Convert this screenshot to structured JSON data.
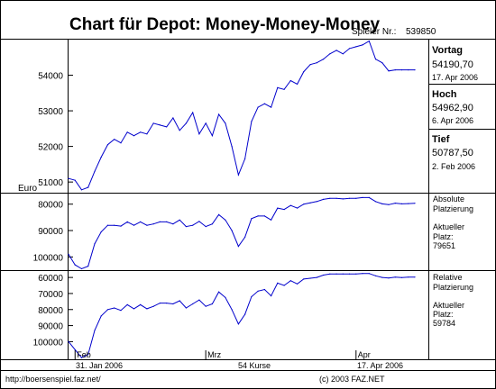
{
  "title": "Chart für Depot:  Money-Money-Money",
  "player_label": "Spieler Nr.:",
  "player_number": "539850",
  "side_stats": [
    {
      "label": "Vortag",
      "value": "54190,70",
      "date": "17. Apr 2006"
    },
    {
      "label": "Hoch",
      "value": "54962,90",
      "date": "6. Apr 2006"
    },
    {
      "label": "Tief",
      "value": "50787,50",
      "date": "2. Feb 2006"
    }
  ],
  "absolute": {
    "label_line1": "Absolute",
    "label_line2": "Platzierung",
    "current_line1": "Aktueller",
    "current_line2": "Platz:",
    "current_value": "79651"
  },
  "relative": {
    "label_line1": "Relative",
    "label_line2": "Platzierung",
    "current_line1": "Aktueller",
    "current_line2": "Platz:",
    "current_value": "59784"
  },
  "footer": {
    "start_date": "31. Jan 2006",
    "count": "54 Kurse",
    "end_date": "17. Apr 2006",
    "url": "http://boersenspiel.faz.net/",
    "copyright": "(c) 2003 FAZ.NET"
  },
  "colors": {
    "line": "#0000cc",
    "grid": "#000000"
  },
  "chart_data": [
    {
      "type": "line",
      "title": "Chart für Depot:  Money-Money-Money",
      "ylabel": "Euro",
      "ylim": [
        50700,
        55000
      ],
      "yticks": [
        51000,
        52000,
        53000,
        54000
      ],
      "month_ticks": [
        {
          "label": "Feb",
          "index": 1
        },
        {
          "label": "Mrz",
          "index": 21
        },
        {
          "label": "Apr",
          "index": 44
        }
      ],
      "series": [
        {
          "values": [
            51100,
            51050,
            50780,
            50850,
            51300,
            51700,
            52050,
            52200,
            52100,
            52400,
            52300,
            52400,
            52350,
            52650,
            52600,
            52550,
            52800,
            52450,
            52650,
            52950,
            52350,
            52650,
            52300,
            52900,
            52650,
            52000,
            51200,
            51650,
            52700,
            53100,
            53200,
            53100,
            53650,
            53600,
            53850,
            53750,
            54100,
            54300,
            54350,
            54450,
            54600,
            54700,
            54600,
            54750,
            54800,
            54850,
            54960,
            54450,
            54350,
            54120,
            54150,
            54150,
            54150,
            54150
          ]
        }
      ]
    },
    {
      "type": "line",
      "title": "Absolute Platzierung",
      "yticks": [
        80000,
        90000,
        100000
      ],
      "yrange": [
        76000,
        105000
      ],
      "inverted": true,
      "series": [
        {
          "values": [
            99000,
            103000,
            104500,
            103500,
            95000,
            90500,
            88000,
            88000,
            88300,
            86700,
            88000,
            86700,
            88000,
            87500,
            86700,
            86700,
            87500,
            86000,
            88500,
            88000,
            86500,
            88500,
            87500,
            84000,
            86000,
            90000,
            96000,
            92500,
            85500,
            84500,
            84500,
            86000,
            81500,
            82000,
            80500,
            81500,
            80000,
            79500,
            79000,
            78200,
            77800,
            77800,
            78000,
            77800,
            77800,
            77500,
            77500,
            79000,
            79900,
            80200,
            79600,
            79900,
            79800,
            79651
          ]
        }
      ]
    },
    {
      "type": "line",
      "title": "Relative Platzierung",
      "yticks": [
        60000,
        70000,
        80000,
        90000,
        100000
      ],
      "yrange": [
        56000,
        111000
      ],
      "inverted": true,
      "series": [
        {
          "values": [
            100000,
            105000,
            110000,
            108000,
            93000,
            84000,
            80000,
            79000,
            80500,
            77000,
            79500,
            77000,
            79500,
            78000,
            76000,
            76000,
            76500,
            74500,
            79000,
            76500,
            74000,
            78000,
            76500,
            69000,
            72500,
            80000,
            89000,
            83000,
            72000,
            68500,
            67500,
            71500,
            63500,
            65000,
            62000,
            64000,
            61000,
            60500,
            60000,
            58500,
            57800,
            57800,
            57800,
            57800,
            57800,
            57500,
            57500,
            59000,
            60000,
            60300,
            59800,
            60100,
            59800,
            59784
          ]
        }
      ]
    }
  ]
}
